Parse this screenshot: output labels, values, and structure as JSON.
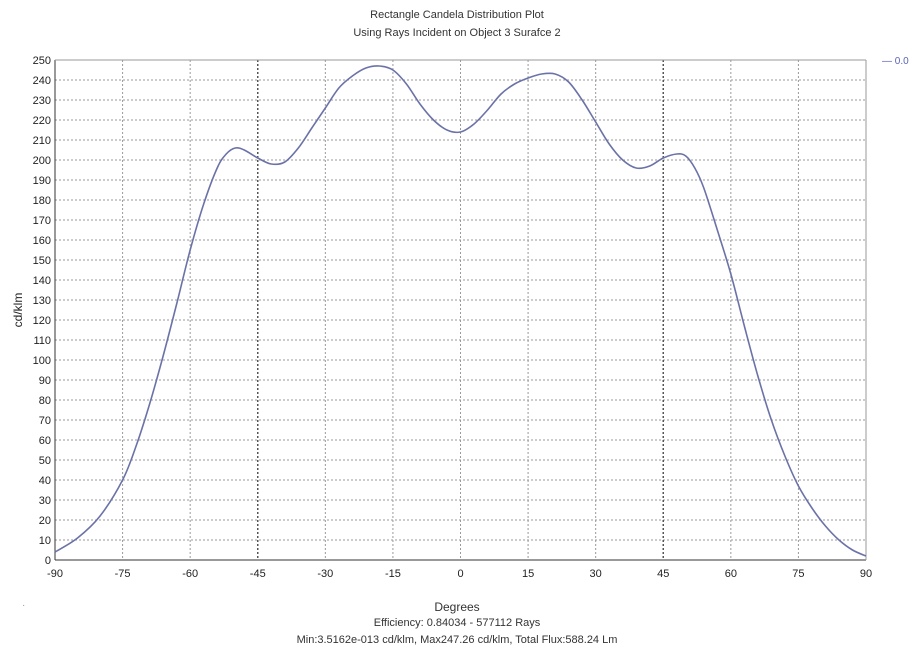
{
  "chart_data": {
    "type": "line",
    "title": "Rectangle Candela Distribution Plot",
    "subtitle": "Using Rays Incident on Object 3 Surafce 2",
    "xlabel": "Degrees",
    "ylabel": "cd/klm",
    "xlim": [
      -90,
      90
    ],
    "ylim": [
      0,
      250
    ],
    "x_ticks": [
      "-90",
      "-75",
      "-60",
      "-45",
      "-30",
      "-15",
      "0",
      "15",
      "30",
      "45",
      "60",
      "75",
      "90"
    ],
    "y_ticks": [
      "0",
      "10",
      "20",
      "30",
      "40",
      "50",
      "60",
      "70",
      "80",
      "90",
      "100",
      "110",
      "120",
      "130",
      "140",
      "150",
      "160",
      "170",
      "180",
      "190",
      "200",
      "210",
      "220",
      "230",
      "240",
      "250"
    ],
    "grid": true,
    "legend_position": "top-right",
    "legend": [
      "0.0"
    ],
    "series": [
      {
        "name": "0.0",
        "color": "#6b72a8",
        "points": [
          [
            -90,
            4
          ],
          [
            -85,
            11
          ],
          [
            -80,
            22
          ],
          [
            -75,
            40
          ],
          [
            -72,
            57
          ],
          [
            -69,
            78
          ],
          [
            -66,
            102
          ],
          [
            -63,
            128
          ],
          [
            -60,
            155
          ],
          [
            -57,
            178
          ],
          [
            -54,
            196
          ],
          [
            -52,
            203
          ],
          [
            -50,
            206
          ],
          [
            -48,
            205
          ],
          [
            -45,
            201
          ],
          [
            -42,
            198
          ],
          [
            -39,
            199
          ],
          [
            -36,
            206
          ],
          [
            -33,
            216
          ],
          [
            -30,
            226
          ],
          [
            -27,
            236
          ],
          [
            -24,
            242
          ],
          [
            -21,
            246
          ],
          [
            -18,
            247
          ],
          [
            -15,
            245
          ],
          [
            -12,
            238
          ],
          [
            -9,
            228
          ],
          [
            -6,
            220
          ],
          [
            -3,
            215
          ],
          [
            0,
            214
          ],
          [
            3,
            218
          ],
          [
            6,
            225
          ],
          [
            9,
            233
          ],
          [
            12,
            238
          ],
          [
            15,
            241
          ],
          [
            18,
            243
          ],
          [
            21,
            243
          ],
          [
            24,
            239
          ],
          [
            27,
            230
          ],
          [
            30,
            219
          ],
          [
            33,
            208
          ],
          [
            36,
            200
          ],
          [
            39,
            196
          ],
          [
            42,
            197
          ],
          [
            45,
            201
          ],
          [
            48,
            203
          ],
          [
            50,
            202
          ],
          [
            52,
            196
          ],
          [
            54,
            186
          ],
          [
            57,
            165
          ],
          [
            60,
            143
          ],
          [
            63,
            117
          ],
          [
            66,
            92
          ],
          [
            69,
            70
          ],
          [
            72,
            52
          ],
          [
            75,
            37
          ],
          [
            78,
            26
          ],
          [
            81,
            17
          ],
          [
            84,
            10
          ],
          [
            87,
            5
          ],
          [
            90,
            2
          ]
        ]
      }
    ]
  },
  "footer": {
    "efficiency": "Efficiency: 0.84034 - 577112 Rays",
    "stats": "Min:3.5162e-013 cd/klm, Max247.26 cd/klm, Total Flux:588.24 Lm"
  },
  "stray_mark": "·"
}
